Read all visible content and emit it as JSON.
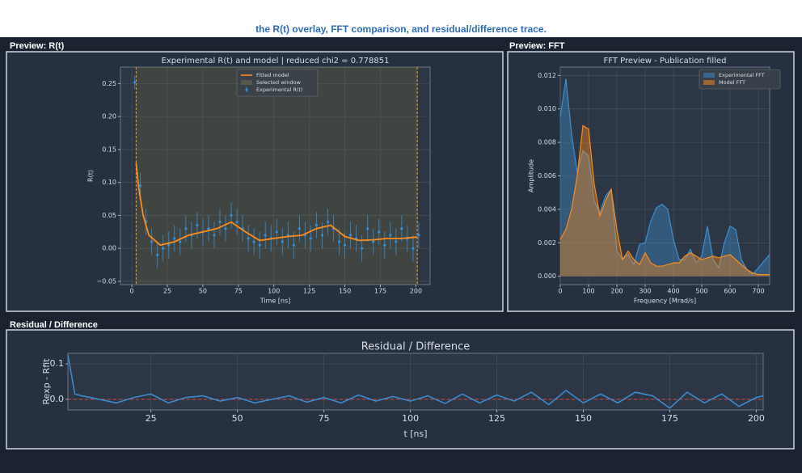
{
  "caption": "the R(t) overlay, FFT comparison, and residual/difference trace.",
  "panel_headers": [
    "Preview: R(t)",
    "Preview: FFT",
    "Residual / Difference"
  ],
  "chart_data": [
    {
      "type": "errorbar",
      "title": "Experimental R(t) and model | reduced chi2 = 0.778851",
      "x_label": "Time [ns]",
      "y_label": "R(t)",
      "grid": true,
      "legend": "upper center",
      "xlim": [
        -8,
        210
      ],
      "xticks": [
        0,
        25,
        50,
        75,
        100,
        125,
        150,
        175,
        200
      ],
      "ylim": [
        -0.055,
        0.275
      ],
      "yticks": [
        {
          "value": -0.05,
          "label": "−0.05"
        },
        {
          "value": 0,
          "label": "0.00"
        },
        {
          "value": 0.05,
          "label": "0.05"
        },
        {
          "value": 0.1,
          "label": "0.10"
        },
        {
          "value": 0.15,
          "label": "0.15"
        },
        {
          "value": 0.2,
          "label": "0.20"
        },
        {
          "value": 0.25,
          "label": "0.25"
        }
      ],
      "window": {
        "name": "Selected window",
        "range": [
          3,
          201
        ],
        "color": "#ff9f1c"
      },
      "series": [
        {
          "name": "Experimental R(t)",
          "color": "#2f8fd8",
          "x": [
            2,
            6,
            10,
            14,
            18,
            22,
            26,
            30,
            34,
            38,
            42,
            46,
            50,
            54,
            58,
            62,
            66,
            70,
            74,
            78,
            82,
            86,
            90,
            94,
            98,
            102,
            106,
            110,
            114,
            118,
            122,
            126,
            130,
            134,
            138,
            142,
            146,
            150,
            154,
            158,
            162,
            166,
            170,
            174,
            178,
            182,
            186,
            190,
            194,
            198,
            202
          ],
          "values": [
            0.252,
            0.095,
            0.04,
            0.01,
            -0.01,
            0.0,
            0.005,
            0.015,
            0.01,
            0.03,
            0.02,
            0.035,
            0.025,
            0.03,
            0.02,
            0.04,
            0.03,
            0.05,
            0.04,
            0.03,
            0.015,
            0.01,
            0.005,
            0.02,
            0.015,
            0.025,
            0.01,
            0.02,
            0.005,
            0.03,
            0.02,
            0.015,
            0.035,
            0.02,
            0.04,
            0.03,
            0.01,
            0.005,
            0.02,
            0.015,
            0.0,
            0.03,
            0.01,
            0.025,
            0.005,
            0.02,
            0.01,
            0.03,
            0.015,
            0.0,
            0.02
          ],
          "errors": [
            0.01,
            0.02,
            0.02,
            0.02,
            0.02,
            0.02,
            0.02,
            0.02,
            0.02,
            0.02,
            0.02,
            0.02,
            0.02,
            0.02,
            0.02,
            0.02,
            0.02,
            0.02,
            0.02,
            0.02,
            0.02,
            0.02,
            0.02,
            0.02,
            0.02,
            0.02,
            0.02,
            0.02,
            0.02,
            0.02,
            0.02,
            0.02,
            0.02,
            0.02,
            0.02,
            0.02,
            0.02,
            0.02,
            0.02,
            0.02,
            0.02,
            0.02,
            0.02,
            0.02,
            0.02,
            0.02,
            0.02,
            0.02,
            0.02,
            0.02,
            0.02
          ]
        },
        {
          "name": "Fitted model",
          "color": "#ff8c1a",
          "x": [
            3,
            5,
            8,
            12,
            20,
            30,
            40,
            50,
            60,
            70,
            80,
            90,
            100,
            110,
            120,
            130,
            140,
            150,
            160,
            170,
            180,
            190,
            200,
            201
          ],
          "values": [
            0.13,
            0.09,
            0.05,
            0.02,
            0.005,
            0.01,
            0.02,
            0.025,
            0.03,
            0.04,
            0.025,
            0.012,
            0.015,
            0.018,
            0.02,
            0.03,
            0.035,
            0.018,
            0.012,
            0.013,
            0.015,
            0.015,
            0.017,
            0.017
          ]
        }
      ]
    },
    {
      "type": "area",
      "title": "FFT Preview - Publication filled",
      "x_label": "Frequency [Mrad/s]",
      "y_label": "Amplitude",
      "grid": true,
      "legend": "upper right",
      "xlim": [
        0,
        740
      ],
      "xticks": [
        0,
        100,
        200,
        300,
        400,
        500,
        600,
        700
      ],
      "ylim": [
        -0.0005,
        0.0125
      ],
      "yticks": [
        {
          "value": 0,
          "label": "0.000"
        },
        {
          "value": 0.002,
          "label": "0.002"
        },
        {
          "value": 0.004,
          "label": "0.004"
        },
        {
          "value": 0.006,
          "label": "0.006"
        },
        {
          "value": 0.008,
          "label": "0.008"
        },
        {
          "value": 0.01,
          "label": "0.010"
        },
        {
          "value": 0.012,
          "label": "0.012"
        }
      ],
      "x": [
        0,
        20,
        40,
        60,
        80,
        100,
        120,
        140,
        160,
        180,
        200,
        220,
        240,
        260,
        280,
        300,
        320,
        340,
        360,
        380,
        400,
        420,
        440,
        460,
        480,
        500,
        520,
        540,
        560,
        580,
        600,
        620,
        640,
        660,
        680,
        700,
        720,
        740
      ],
      "series": [
        {
          "name": "Experimental FFT",
          "color": "#3b8fd0",
          "values": [
            0.0095,
            0.0118,
            0.0085,
            0.0062,
            0.0075,
            0.0072,
            0.0045,
            0.0038,
            0.0048,
            0.0052,
            0.0015,
            0.001,
            0.0013,
            0.0007,
            0.0019,
            0.002,
            0.0033,
            0.0041,
            0.0043,
            0.004,
            0.0022,
            0.001,
            0.001,
            0.0016,
            0.0008,
            0.0012,
            0.003,
            0.001,
            0.0005,
            0.002,
            0.003,
            0.0028,
            0.001,
            0.0004,
            0.0001,
            0.0005,
            0.0009,
            0.0013
          ]
        },
        {
          "name": "Model FFT",
          "color": "#ff8c1a",
          "values": [
            0.0022,
            0.0028,
            0.004,
            0.006,
            0.009,
            0.0088,
            0.0055,
            0.0036,
            0.0045,
            0.0052,
            0.0028,
            0.001,
            0.0015,
            0.001,
            0.0007,
            0.0014,
            0.0008,
            0.0006,
            0.0006,
            0.0007,
            0.0008,
            0.0008,
            0.0012,
            0.0014,
            0.0012,
            0.001,
            0.0011,
            0.0012,
            0.0011,
            0.0012,
            0.0013,
            0.001,
            0.0007,
            0.0004,
            0.0002,
            0.0001,
            0.0001,
            0.0001
          ]
        }
      ]
    },
    {
      "type": "line",
      "title": "Residual / Difference",
      "x_label": "t [ns]",
      "y_label": "Rexp - Rfit",
      "grid": true,
      "xlim": [
        1,
        202
      ],
      "xticks": [
        25,
        50,
        75,
        100,
        125,
        150,
        175,
        200
      ],
      "ylim": [
        -0.03,
        0.13
      ],
      "yticks": [
        {
          "value": 0,
          "label": "0.0"
        },
        {
          "value": 0.1,
          "label": "0.1"
        }
      ],
      "hline": {
        "value": 0,
        "color": "#e0443a"
      },
      "x": [
        1,
        3,
        5,
        10,
        15,
        20,
        25,
        30,
        35,
        40,
        45,
        50,
        55,
        60,
        65,
        70,
        75,
        80,
        85,
        90,
        95,
        100,
        105,
        110,
        115,
        120,
        125,
        130,
        135,
        140,
        145,
        150,
        155,
        160,
        165,
        170,
        175,
        180,
        185,
        190,
        195,
        200,
        202
      ],
      "series": [
        {
          "color": "#3b8fd8",
          "values": [
            0.125,
            0.015,
            0.01,
            0.0,
            -0.01,
            0.005,
            0.015,
            -0.01,
            0.005,
            0.01,
            -0.005,
            0.005,
            -0.01,
            0.0,
            0.01,
            -0.008,
            0.005,
            -0.01,
            0.012,
            -0.005,
            0.008,
            -0.005,
            0.01,
            -0.012,
            0.015,
            -0.01,
            0.012,
            -0.005,
            0.02,
            -0.015,
            0.025,
            -0.01,
            0.015,
            -0.01,
            0.02,
            0.01,
            -0.025,
            0.02,
            -0.01,
            0.015,
            -0.02,
            0.005,
            0.01
          ]
        }
      ]
    }
  ]
}
